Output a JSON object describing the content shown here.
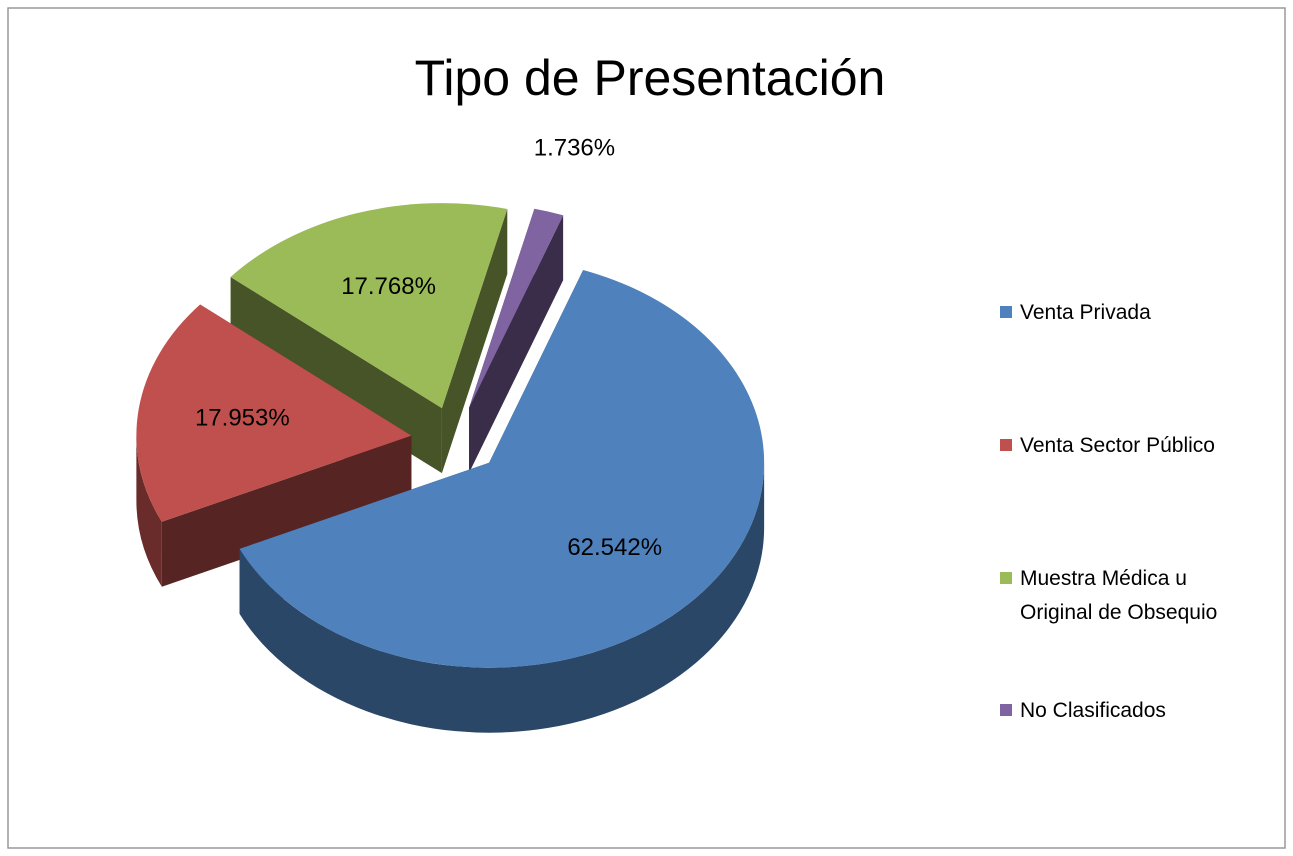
{
  "chart_data": {
    "type": "pie",
    "title": "Tipo de Presentación",
    "categories": [
      "Venta Privada",
      "Venta Sector Público",
      "Muestra Médica u Original de Obsequio",
      "No Clasificados"
    ],
    "values": [
      62.542,
      17.953,
      17.768,
      1.736
    ],
    "value_labels": [
      "62.542%",
      "17.953%",
      "17.768%",
      "1.736%"
    ],
    "colors": [
      "#4f81bd",
      "#c0504d",
      "#9bbb59",
      "#8064a2"
    ],
    "legend": "right"
  }
}
